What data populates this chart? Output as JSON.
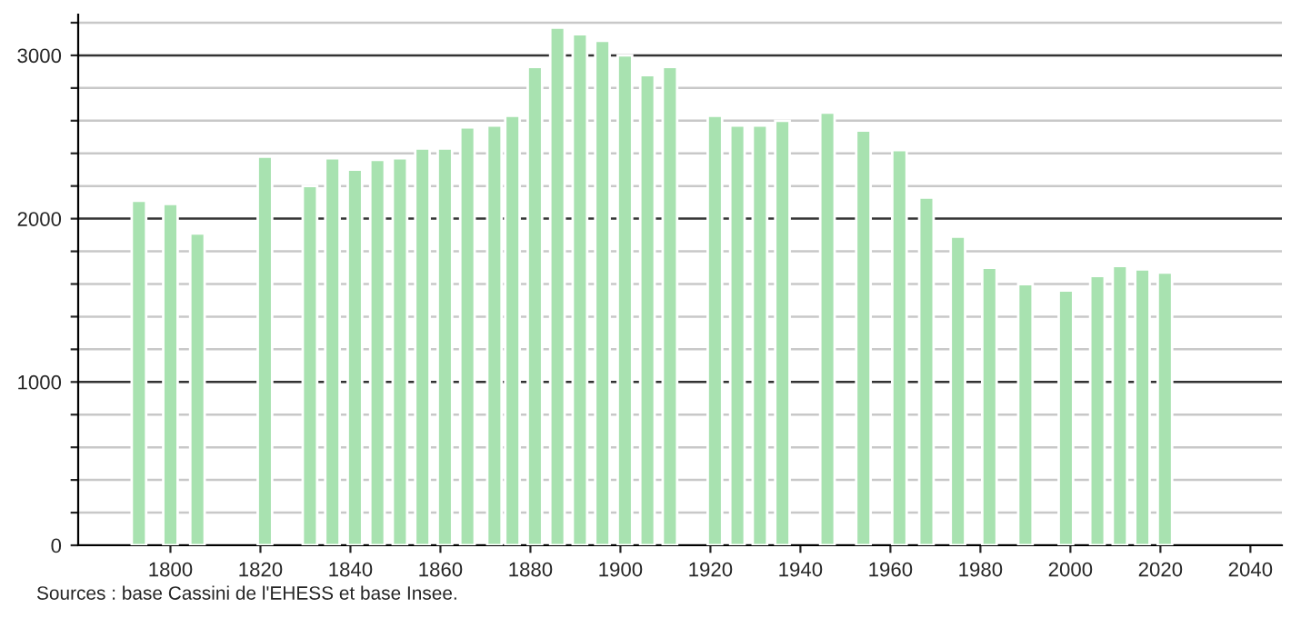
{
  "chart_data": {
    "type": "bar",
    "x": [
      1793,
      1800,
      1806,
      1821,
      1831,
      1836,
      1841,
      1846,
      1851,
      1856,
      1861,
      1866,
      1872,
      1876,
      1881,
      1886,
      1891,
      1896,
      1901,
      1906,
      1911,
      1921,
      1926,
      1931,
      1936,
      1946,
      1954,
      1962,
      1968,
      1975,
      1982,
      1990,
      1999,
      2006,
      2011,
      2016,
      2021
    ],
    "values": [
      2110,
      2090,
      1910,
      2380,
      2200,
      2370,
      2300,
      2360,
      2370,
      2430,
      2430,
      2560,
      2570,
      2630,
      2930,
      3170,
      3130,
      3090,
      3000,
      2880,
      2930,
      2630,
      2570,
      2570,
      2600,
      2650,
      2540,
      2420,
      2130,
      1890,
      1700,
      1600,
      1560,
      1650,
      1710,
      1690,
      1670
    ],
    "color": "#a8e2b0",
    "xlim": [
      1779.5,
      2047
    ],
    "xticks": [
      1800,
      1820,
      1840,
      1860,
      1880,
      1900,
      1920,
      1940,
      1960,
      1980,
      2000,
      2020,
      2040
    ],
    "ylim": [
      0,
      3250
    ],
    "yticks": [
      0,
      {
        "value": 200,
        "label": null
      },
      {
        "value": 400,
        "label": null
      },
      {
        "value": 600,
        "label": null
      },
      {
        "value": 800,
        "label": null
      },
      1000,
      {
        "value": 1200,
        "label": null
      },
      {
        "value": 1400,
        "label": null
      },
      {
        "value": 1600,
        "label": null
      },
      {
        "value": 1800,
        "label": null
      },
      2000,
      {
        "value": 2200,
        "label": null
      },
      {
        "value": 2400,
        "label": null
      },
      {
        "value": 2600,
        "label": null
      },
      {
        "value": 2800,
        "label": null
      },
      3000,
      {
        "value": 3200,
        "label": null
      }
    ],
    "grid": "y",
    "annotations": [
      "Sources : base Cassini de l'EHESS et base Insee."
    ]
  }
}
